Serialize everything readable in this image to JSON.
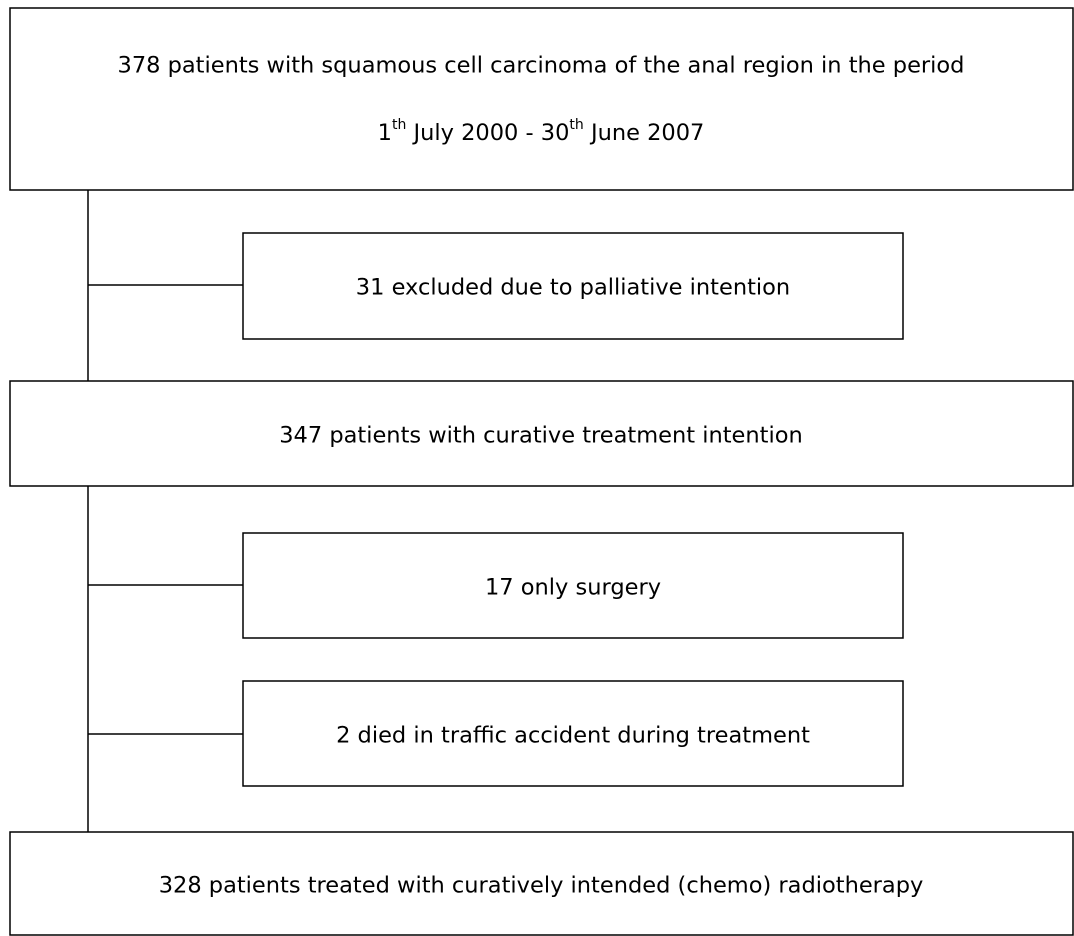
{
  "nodes": [
    {
      "lines": [
        "378 patients with squamous cell carcinoma of the anal region in the period"
      ],
      "date_parts": [
        "1",
        "th",
        " July 2000 - 30",
        "th",
        " June 2007"
      ]
    },
    {
      "label": "31 excluded due to palliative intention"
    },
    {
      "label": "347 patients with curative treatment intention"
    },
    {
      "label": "17 only surgery"
    },
    {
      "label": "2 died in traffic accident during treatment"
    },
    {
      "label": "328 patients treated with curatively intended (chemo) radiotherapy"
    }
  ]
}
